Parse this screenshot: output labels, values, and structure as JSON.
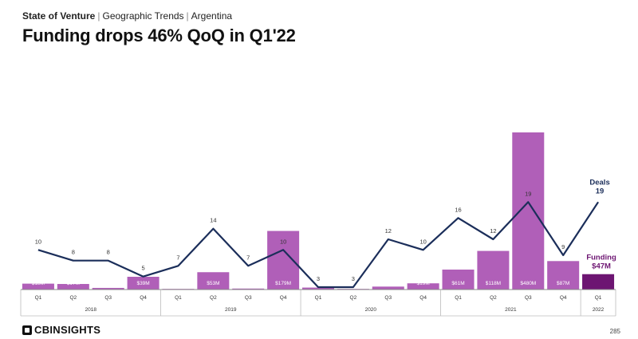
{
  "header": {
    "section": "State of Venture",
    "category": "Geographic Trends",
    "country": "Argentina",
    "separator": "|",
    "title": "Funding drops 46% QoQ in Q1'22"
  },
  "footer": {
    "logo": "CBINSIGHTS",
    "page_number": "285"
  },
  "colors": {
    "bar": "#b05fb8",
    "bar_highlight": "#6d1572",
    "line": "#1b2e5a",
    "axis": "#888888"
  },
  "chart_data": {
    "type": "bar",
    "categories": [
      "Q1",
      "Q2",
      "Q3",
      "Q4",
      "Q1",
      "Q2",
      "Q3",
      "Q4",
      "Q1",
      "Q2",
      "Q3",
      "Q4",
      "Q1",
      "Q2",
      "Q3",
      "Q4",
      "Q1"
    ],
    "years": [
      {
        "label": "2018",
        "span": 4
      },
      {
        "label": "2019",
        "span": 4
      },
      {
        "label": "2020",
        "span": 4
      },
      {
        "label": "2021",
        "span": 4
      },
      {
        "label": "2022",
        "span": 1
      }
    ],
    "series": [
      {
        "name": "Funding",
        "unit": "$M",
        "values": [
          18,
          17,
          5,
          39,
          2,
          53,
          3,
          179,
          6,
          2,
          9,
          19,
          61,
          118,
          480,
          87,
          47
        ],
        "labels": [
          "$18M",
          "$17M",
          "$5M",
          "$39M",
          "$2M",
          "$53M",
          "$3M",
          "$179M",
          "$6M",
          "$2M",
          "$9M",
          "$19M",
          "$61M",
          "$118M",
          "$480M",
          "$87M",
          "$47M"
        ]
      },
      {
        "name": "Deals",
        "values": [
          10,
          8,
          8,
          5,
          7,
          14,
          7,
          10,
          3,
          3,
          12,
          10,
          16,
          12,
          19,
          9,
          19
        ]
      }
    ],
    "legend_labels": {
      "deals": "Deals",
      "deals_value": "19",
      "funding": "Funding",
      "funding_value": "$47M"
    },
    "ylim_funding": [
      0,
      480
    ],
    "ylim_deals": [
      0,
      27
    ],
    "grid": false
  }
}
